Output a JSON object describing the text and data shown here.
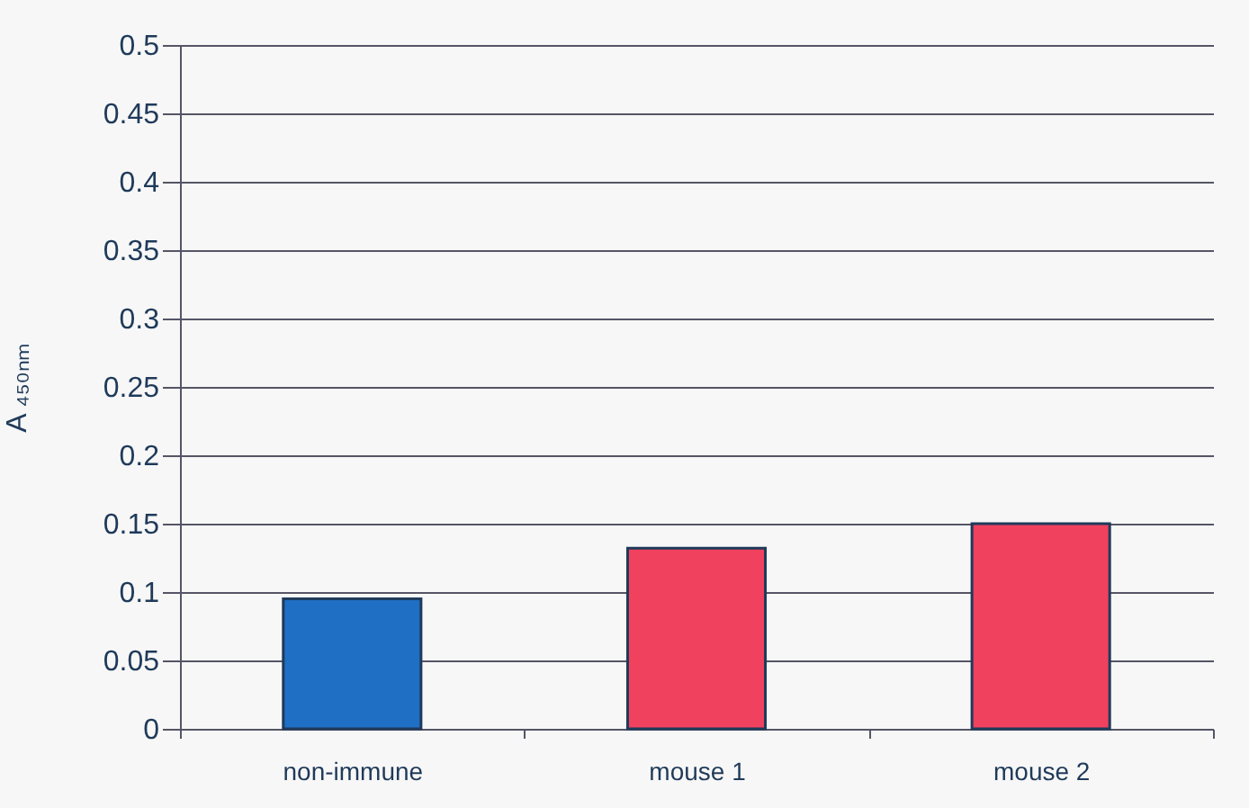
{
  "chart_data": {
    "type": "bar",
    "ylabel": "A ₄₅₀ₙₘ",
    "categories": [
      "non-immune",
      "mouse 1",
      "mouse 2"
    ],
    "values": [
      0.095,
      0.132,
      0.15
    ],
    "colors": [
      "#1f6fc4",
      "#f0415e",
      "#f0415e"
    ],
    "ylim": [
      0,
      0.5
    ],
    "yticks": [
      0,
      0.05,
      0.1,
      0.15,
      0.2,
      0.25,
      0.3,
      0.35,
      0.4,
      0.45,
      0.5
    ],
    "grid": "y"
  }
}
